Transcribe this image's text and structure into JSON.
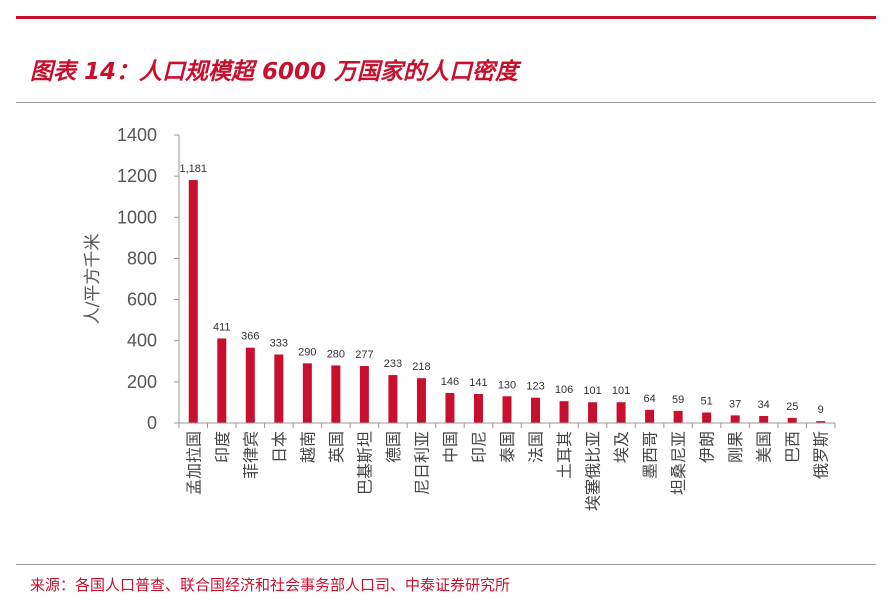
{
  "header": {
    "title": "图表 14：人口规模超 6000 万国家的人口密度"
  },
  "footer": {
    "source": "来源：各国人口普查、联合国经济和社会事务部人口司、中泰证券研究所"
  },
  "colors": {
    "accent": "#c8102e",
    "bar": "#c8102e",
    "axis": "#999999"
  },
  "chart_data": {
    "type": "bar",
    "ylabel": "人/平方千米",
    "ylim": [
      0,
      1400
    ],
    "yticks": [
      0,
      200,
      400,
      600,
      800,
      1000,
      1200,
      1400
    ],
    "grid": false,
    "categories": [
      "孟加拉国",
      "印度",
      "菲律宾",
      "日本",
      "越南",
      "英国",
      "巴基斯坦",
      "德国",
      "尼日利亚",
      "中国",
      "印尼",
      "泰国",
      "法国",
      "土耳其",
      "埃塞俄比亚",
      "埃及",
      "墨西哥",
      "坦桑尼亚",
      "伊朗",
      "刚果",
      "美国",
      "巴西",
      "俄罗斯"
    ],
    "values": [
      1181,
      411,
      366,
      333,
      290,
      280,
      277,
      233,
      218,
      146,
      141,
      130,
      123,
      106,
      101,
      101,
      64,
      59,
      51,
      37,
      34,
      25,
      9
    ],
    "data_labels": [
      "1,181",
      "411",
      "366",
      "333",
      "290",
      "280",
      "277",
      "233",
      "218",
      "146",
      "141",
      "130",
      "123",
      "106",
      "101",
      "101",
      "64",
      "59",
      "51",
      "37",
      "34",
      "25",
      "9"
    ]
  }
}
